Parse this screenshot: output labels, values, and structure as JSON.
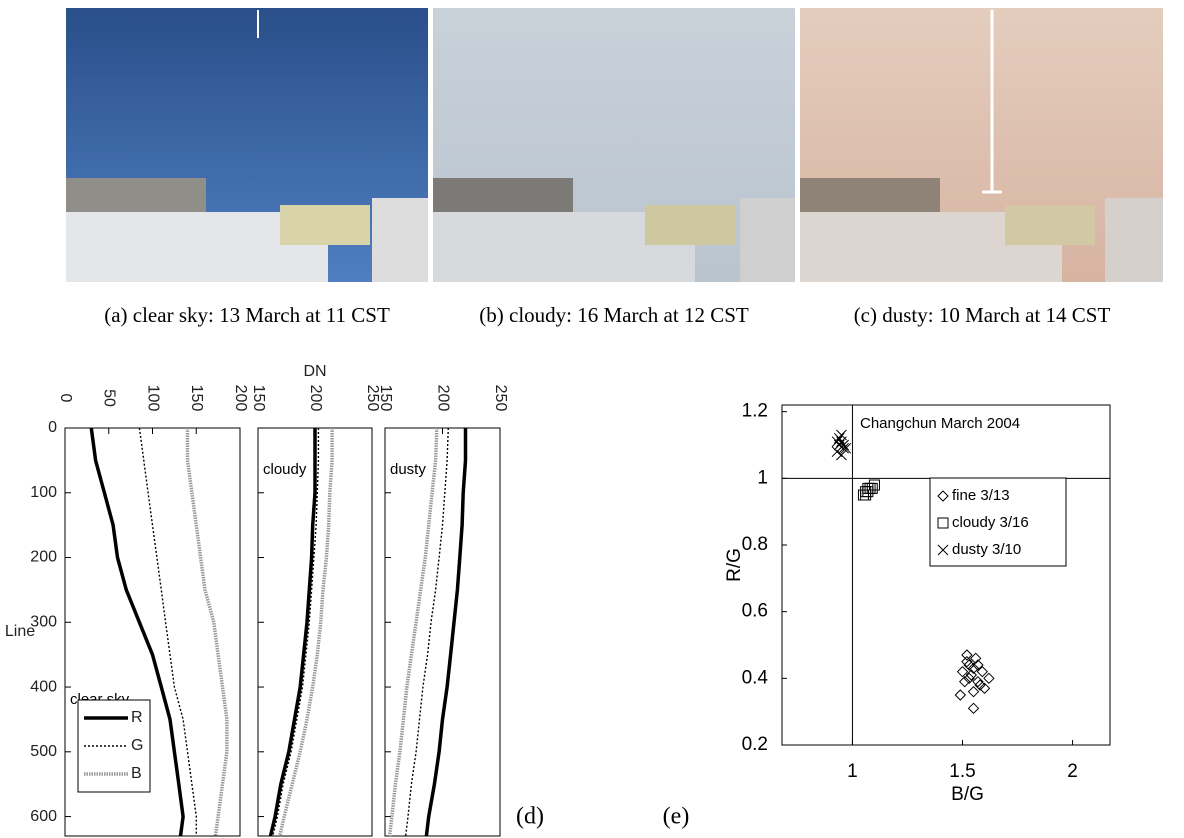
{
  "figure": {
    "captions": [
      "(a) clear sky: 13 March at 11 CST",
      "(b) cloudy: 16 March at 12 CST",
      "(c) dusty: 10 March at 14 CST"
    ],
    "panel_labels": [
      "(d)",
      "(e)"
    ]
  },
  "chart_data": [
    {
      "type": "line",
      "x_label": "DN",
      "y_label": "Line",
      "y": [
        0,
        50,
        100,
        150,
        200,
        250,
        300,
        350,
        400,
        450,
        500,
        550,
        600,
        630
      ],
      "ylim": [
        0,
        630
      ],
      "yticks": [
        0,
        100,
        200,
        300,
        400,
        500,
        600
      ],
      "series": [
        {
          "name": "R",
          "color": "#000000"
        },
        {
          "name": "G",
          "color": "#000000"
        },
        {
          "name": "B",
          "color": "#999999"
        }
      ],
      "panels": [
        {
          "label": "clear sky",
          "xlim": [
            0,
            200
          ],
          "xticks": [
            0,
            50,
            100,
            150,
            200
          ],
          "values": [
            [
              30,
              35,
              45,
              55,
              60,
              70,
              85,
              100,
              110,
              120,
              125,
              130,
              135,
              132
            ],
            [
              85,
              90,
              95,
              100,
              105,
              110,
              115,
              120,
              125,
              135,
              140,
              145,
              150,
              150
            ],
            [
              140,
              140,
              145,
              150,
              155,
              160,
              170,
              175,
              180,
              185,
              185,
              180,
              175,
              172
            ]
          ]
        },
        {
          "label": "cloudy",
          "xlim": [
            150,
            250
          ],
          "xticks": [
            150,
            200,
            250
          ],
          "values": [
            [
              200,
              200,
              200,
              198,
              197,
              195,
              193,
              190,
              187,
              182,
              177,
              170,
              165,
              161
            ],
            [
              203,
              203,
              202,
              201,
              199,
              197,
              195,
              192,
              189,
              184,
              179,
              172,
              167,
              163
            ],
            [
              215,
              215,
              213,
              212,
              210,
              207,
              205,
              202,
              198,
              193,
              187,
              180,
              173,
              169
            ]
          ]
        },
        {
          "label": "dusty",
          "xlim": [
            150,
            250
          ],
          "xticks": [
            150,
            200,
            250
          ],
          "values": [
            [
              220,
              220,
              218,
              217,
              215,
              213,
              210,
              207,
              204,
              200,
              197,
              193,
              188,
              186
            ],
            [
              205,
              204,
              202,
              200,
              197,
              194,
              190,
              187,
              183,
              180,
              177,
              173,
              170,
              168
            ],
            [
              195,
              194,
              191,
              188,
              185,
              181,
              177,
              173,
              169,
              166,
              163,
              159,
              156,
              154
            ]
          ]
        }
      ]
    },
    {
      "type": "scatter",
      "x_label": "B/G",
      "y_label": "R/G",
      "annotation": "Changchun March 2004",
      "xlim": [
        0.68,
        2.17
      ],
      "ylim": [
        0.2,
        1.22
      ],
      "xticks": [
        1,
        1.5,
        2
      ],
      "yticks": [
        0.2,
        0.4,
        0.6,
        0.8,
        1,
        1.2
      ],
      "vlines": [
        1
      ],
      "hlines": [
        1
      ],
      "series": [
        {
          "name": "fine 3/13",
          "marker": "diamond",
          "color": "#000000",
          "x": [
            1.5,
            1.52,
            1.55,
            1.53,
            1.57,
            1.58,
            1.54,
            1.6,
            1.56,
            1.51,
            1.59,
            1.55,
            1.53,
            1.62,
            1.49,
            1.55,
            1.57,
            1.52
          ],
          "y": [
            0.42,
            0.45,
            0.43,
            0.4,
            0.44,
            0.38,
            0.41,
            0.37,
            0.46,
            0.39,
            0.42,
            0.36,
            0.44,
            0.4,
            0.35,
            0.31,
            0.39,
            0.47
          ]
        },
        {
          "name": "cloudy 3/16",
          "marker": "square",
          "color": "#000000",
          "x": [
            1.05,
            1.06,
            1.07,
            1.08,
            1.09,
            1.06,
            1.07,
            1.1
          ],
          "y": [
            0.95,
            0.96,
            0.96,
            0.97,
            0.97,
            0.95,
            0.97,
            0.98
          ]
        },
        {
          "name": "dusty 3/10",
          "marker": "x",
          "color": "#000000",
          "x": [
            0.93,
            0.94,
            0.95,
            0.96,
            0.95,
            0.94,
            0.96,
            0.97,
            0.95,
            0.93
          ],
          "y": [
            1.08,
            1.1,
            1.11,
            1.09,
            1.07,
            1.12,
            1.1,
            1.09,
            1.13,
            1.11
          ]
        }
      ]
    }
  ]
}
